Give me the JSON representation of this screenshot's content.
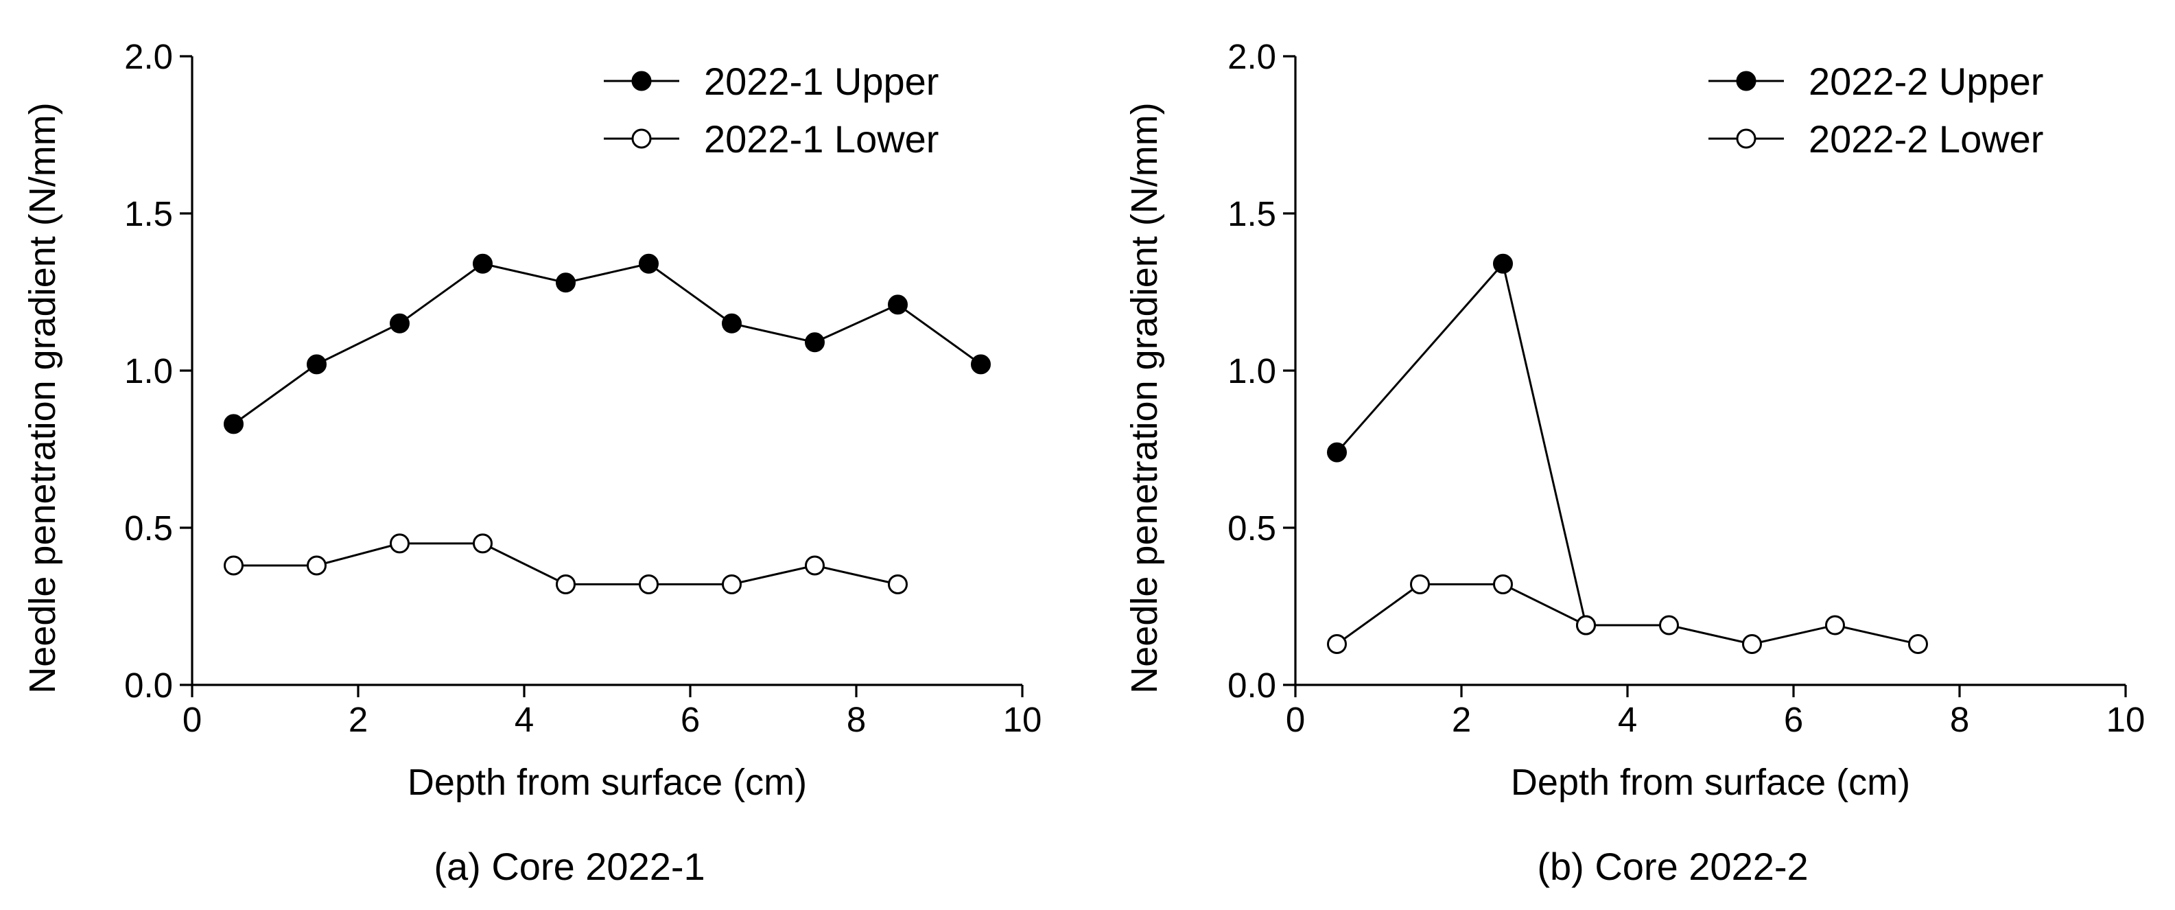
{
  "chart_data": [
    {
      "type": "line",
      "caption": "(a) Core 2022-1",
      "xlabel": "Depth from surface (cm)",
      "ylabel": "Needle penetration gradient (N/mm)",
      "xlim": [
        0,
        10
      ],
      "ylim": [
        0,
        2.0
      ],
      "xticks": [
        "0",
        "2",
        "4",
        "6",
        "8",
        "10"
      ],
      "yticks": [
        "0.0",
        "0.5",
        "1.0",
        "1.5",
        "2.0"
      ],
      "grid": false,
      "legend_position": "top-right",
      "series": [
        {
          "name": "2022-1 Upper",
          "marker": "filled-circle",
          "color": "#000000",
          "x": [
            0.5,
            1.5,
            2.5,
            3.5,
            4.5,
            5.5,
            6.5,
            7.5,
            8.5,
            9.5
          ],
          "y": [
            0.83,
            1.02,
            1.15,
            1.34,
            1.28,
            1.34,
            1.15,
            1.09,
            1.21,
            1.02
          ]
        },
        {
          "name": "2022-1 Lower",
          "marker": "open-circle",
          "color": "#000000",
          "x": [
            0.5,
            1.5,
            2.5,
            3.5,
            4.5,
            5.5,
            6.5,
            7.5,
            8.5
          ],
          "y": [
            0.38,
            0.38,
            0.45,
            0.45,
            0.32,
            0.32,
            0.32,
            0.38,
            0.32
          ]
        }
      ]
    },
    {
      "type": "line",
      "caption": "(b) Core 2022-2",
      "xlabel": "Depth from surface (cm)",
      "ylabel": "Needle penetration gradient (N/mm)",
      "xlim": [
        0,
        10
      ],
      "ylim": [
        0,
        2.0
      ],
      "xticks": [
        "0",
        "2",
        "4",
        "6",
        "8",
        "10"
      ],
      "yticks": [
        "0.0",
        "0.5",
        "1.0",
        "1.5",
        "2.0"
      ],
      "grid": false,
      "legend_position": "top-right",
      "series": [
        {
          "name": "2022-2 Upper",
          "marker": "filled-circle",
          "color": "#000000",
          "x": [
            0.5,
            2.5,
            3.5
          ],
          "y": [
            0.74,
            1.34,
            0.19
          ]
        },
        {
          "name": "2022-2 Lower",
          "marker": "open-circle",
          "color": "#000000",
          "x": [
            0.5,
            1.5,
            2.5,
            3.5,
            4.5,
            5.5,
            6.5,
            7.5
          ],
          "y": [
            0.13,
            0.32,
            0.32,
            0.19,
            0.19,
            0.13,
            0.19,
            0.13
          ]
        }
      ]
    }
  ]
}
